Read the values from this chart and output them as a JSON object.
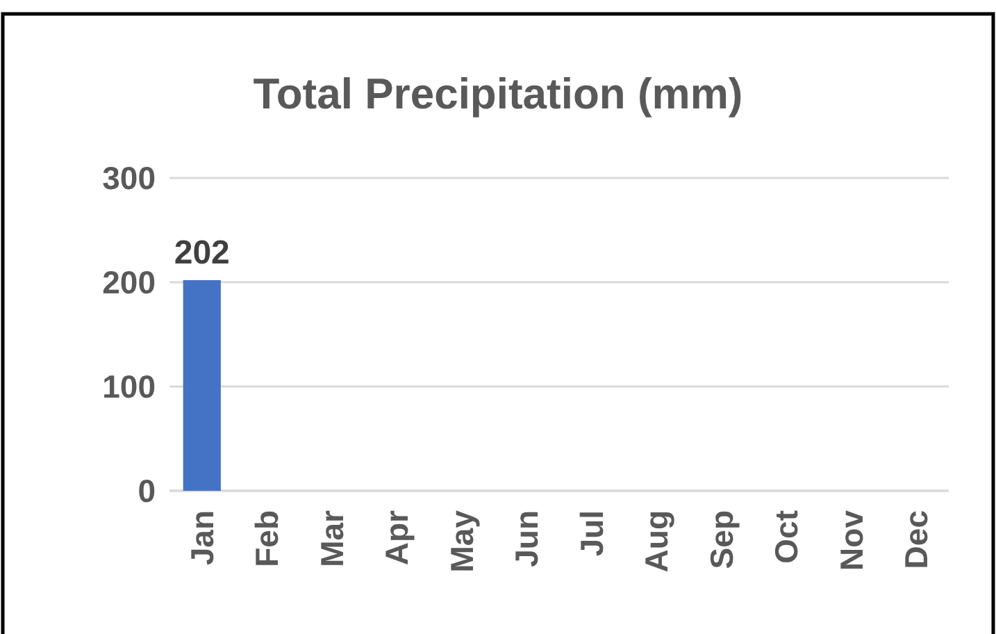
{
  "chart_data": {
    "type": "bar",
    "title": "Total Precipitation (mm)",
    "categories": [
      "Jan",
      "Feb",
      "Mar",
      "Apr",
      "May",
      "Jun",
      "Jul",
      "Aug",
      "Sep",
      "Oct",
      "Nov",
      "Dec"
    ],
    "values": [
      202,
      null,
      null,
      null,
      null,
      null,
      null,
      null,
      null,
      null,
      null,
      null
    ],
    "value_labels": [
      "202",
      null,
      null,
      null,
      null,
      null,
      null,
      null,
      null,
      null,
      null,
      null
    ],
    "color": "#4472c4",
    "ylim": [
      0,
      300
    ],
    "yticks": [
      0,
      100,
      200,
      300
    ],
    "grid": "y"
  }
}
